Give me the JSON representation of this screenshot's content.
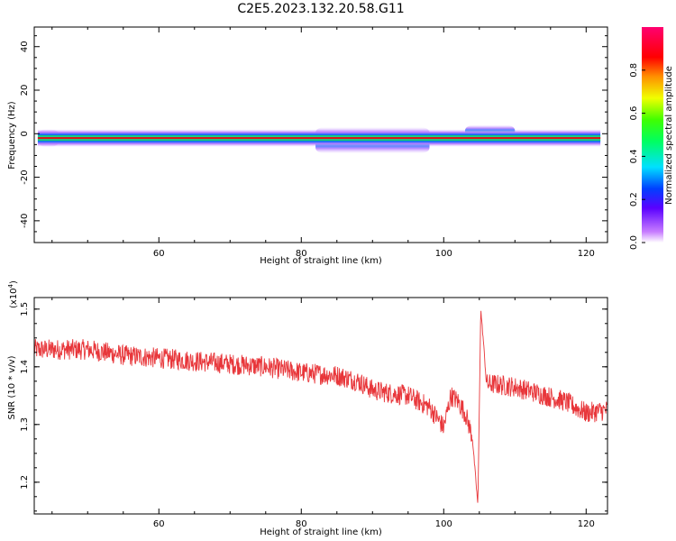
{
  "title": "C2E5.2023.132.20.58.G11",
  "chart_data": [
    {
      "type": "heatmap",
      "xlabel": "Height of straight line (km)",
      "ylabel": "Frequency (Hz)",
      "xlim": [
        42.5,
        123
      ],
      "ylim": [
        -50,
        49
      ],
      "xticks": [
        "60",
        "80",
        "100",
        "120"
      ],
      "yticks": [
        "-40",
        "-20",
        "0",
        "20",
        "40"
      ],
      "colorbar": {
        "label": "Normalized spectral amplitude",
        "range": [
          0.0,
          1.0
        ],
        "ticks": [
          "0.0",
          "0.2",
          "0.4",
          "0.6",
          "0.8"
        ]
      },
      "band": {
        "center_frequency_hz": -2,
        "core_amplitude": 0.9,
        "broadening": [
          {
            "height_km_range": [
              43,
              46
            ],
            "freq_range_hz": [
              -6,
              2
            ],
            "amplitude": 0.3
          },
          {
            "height_km_range": [
              82,
              98
            ],
            "freq_range_hz": [
              -9,
              3
            ],
            "amplitude": 0.35
          },
          {
            "height_km_range": [
              103,
              110
            ],
            "freq_range_hz": [
              -4,
              4
            ],
            "amplitude": 0.5
          }
        ]
      }
    },
    {
      "type": "line",
      "xlabel": "Height of straight line (km)",
      "ylabel": "SNR (10 * v/v)",
      "y_scale_label": "(x10",
      "y_scale_exponent": "4",
      "y_scale_close": ")",
      "xlim": [
        42.5,
        123
      ],
      "ylim": [
        1.145,
        1.52
      ],
      "xticks": [
        "60",
        "80",
        "100",
        "120"
      ],
      "yticks": [
        "1.2",
        "1.3",
        "1.4",
        "1.5"
      ],
      "color": "#e8363a",
      "series": [
        {
          "x": [
            42.5,
            45,
            48,
            50,
            55,
            60,
            65,
            70,
            75,
            80,
            85,
            88,
            90,
            92,
            95,
            98,
            100,
            101,
            102,
            103,
            104,
            104.8,
            105.2,
            105.6,
            106,
            107,
            110,
            113,
            117,
            120,
            123
          ],
          "values": [
            1.43,
            1.43,
            1.43,
            1.43,
            1.42,
            1.415,
            1.41,
            1.405,
            1.4,
            1.39,
            1.385,
            1.375,
            1.36,
            1.355,
            1.35,
            1.33,
            1.295,
            1.35,
            1.34,
            1.32,
            1.28,
            1.16,
            1.5,
            1.44,
            1.37,
            1.37,
            1.365,
            1.355,
            1.34,
            1.32,
            1.325
          ]
        }
      ]
    }
  ]
}
